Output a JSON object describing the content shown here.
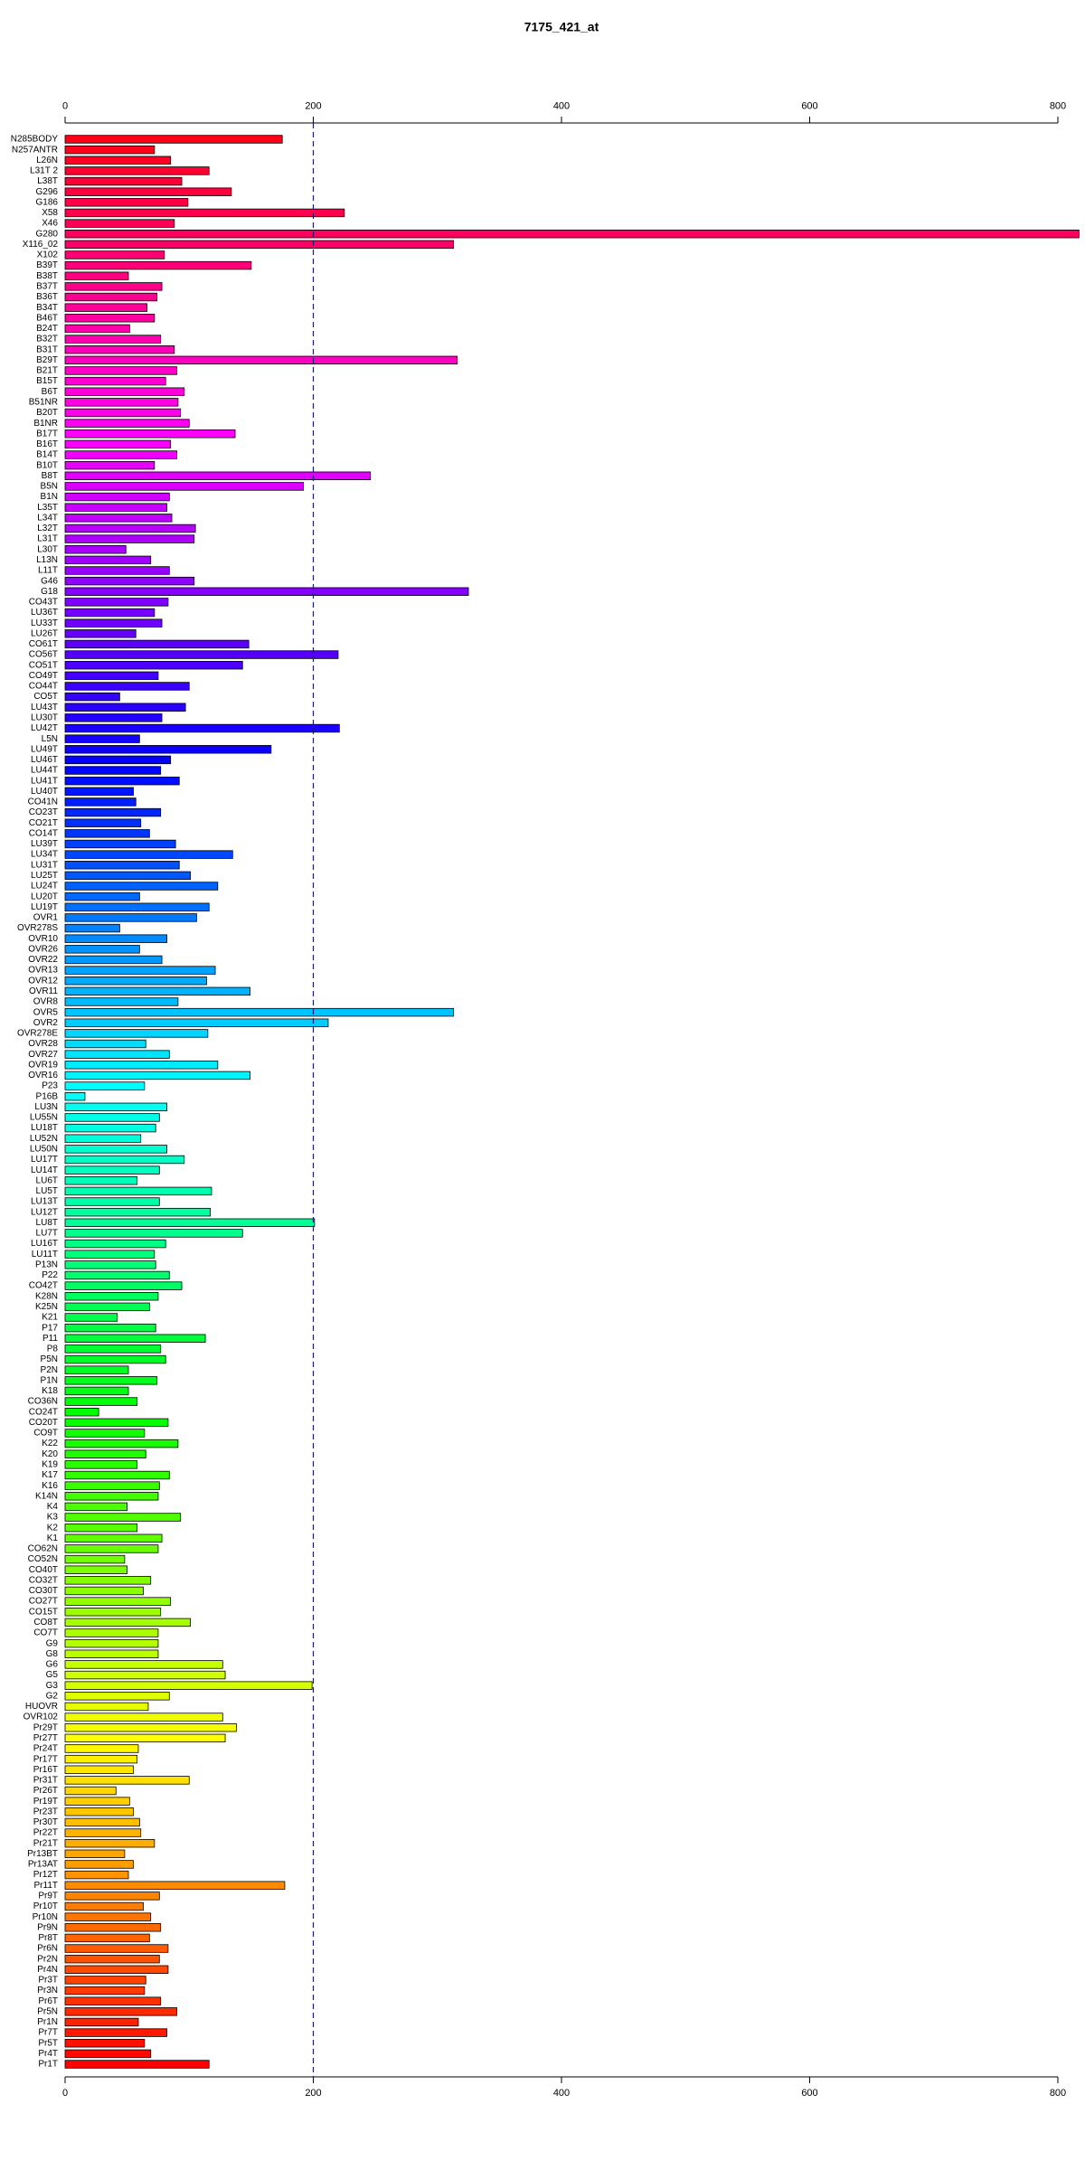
{
  "chart_data": {
    "type": "barh",
    "title": "7175_421_at",
    "categories": [
      "N285BODY",
      "N257ANTR",
      "L26N",
      "L31T 2",
      "L38T",
      "G296",
      "G186",
      "X58",
      "X46",
      "G280",
      "X116_02",
      "X102",
      "B39T",
      "B38T",
      "B37T",
      "B36T",
      "B34T",
      "B46T",
      "B24T",
      "B32T",
      "B31T",
      "B29T",
      "B21T",
      "B15T",
      "B6T",
      "B51NR",
      "B20T",
      "B1NR",
      "B17T",
      "B16T",
      "B14T",
      "B10T",
      "B8T",
      "B5N",
      "B1N",
      "L35T",
      "L34T",
      "L32T",
      "L31T",
      "L30T",
      "L13N",
      "L11T",
      "G46",
      "G18",
      "CO43T",
      "LU36T",
      "LU33T",
      "LU26T",
      "CO61T",
      "CO56T",
      "CO51T",
      "CO49T",
      "CO44T",
      "CO5T",
      "LU43T",
      "LU30T",
      "LU42T",
      "L5N",
      "LU49T",
      "LU46T",
      "LU44T",
      "LU41T",
      "LU40T",
      "CO41N",
      "CO23T",
      "CO21T",
      "CO14T",
      "LU39T",
      "LU34T",
      "LU31T",
      "LU25T",
      "LU24T",
      "LU20T",
      "LU19T",
      "OVR1",
      "OVR278S",
      "OVR10",
      "OVR26",
      "OVR22",
      "OVR13",
      "OVR12",
      "OVR11",
      "OVR8",
      "OVR5",
      "OVR2",
      "OVR278E",
      "OVR28",
      "OVR27",
      "OVR19",
      "OVR16",
      "P23",
      "P16B",
      "LU3N",
      "LU55N",
      "LU18T",
      "LU52N",
      "LU50N",
      "LU17T",
      "LU14T",
      "LU6T",
      "LU5T",
      "LU13T",
      "LU12T",
      "LU8T",
      "LU7T",
      "LU16T",
      "LU11T",
      "P13N",
      "P22",
      "CO42T",
      "K28N",
      "K25N",
      "K21",
      "P17",
      "P11",
      "P8",
      "P5N",
      "P2N",
      "P1N",
      "K18",
      "CO36N",
      "CO24T",
      "CO20T",
      "CO9T",
      "K22",
      "K20",
      "K19",
      "K17",
      "K16",
      "K14N",
      "K4",
      "K3",
      "K2",
      "K1",
      "CO62N",
      "CO52N",
      "CO40T",
      "CO32T",
      "CO30T",
      "CO27T",
      "CO15T",
      "CO8T",
      "CO7T",
      "G9",
      "G8",
      "G6",
      "G5",
      "G3",
      "G2",
      "HUOVR",
      "OVR102",
      "Pr29T",
      "Pr27T",
      "Pr24T",
      "Pr17T",
      "Pr16T",
      "Pr31T",
      "Pr26T",
      "Pr19T",
      "Pr23T",
      "Pr30T",
      "Pr22T",
      "Pr21T",
      "Pr13BT",
      "Pr13AT",
      "Pr12T",
      "Pr11T",
      "Pr9T",
      "Pr10T",
      "Pr10N",
      "Pr9N",
      "Pr8T",
      "Pr6N",
      "Pr2N",
      "Pr4N",
      "Pr3T",
      "Pr3N",
      "Pr6T",
      "Pr5N",
      "Pr1N",
      "Pr7T",
      "Pr5T",
      "Pr4T",
      "Pr1T"
    ],
    "values": [
      175,
      72,
      85,
      116,
      94,
      134,
      99,
      225,
      88,
      817,
      313,
      80,
      150,
      51,
      78,
      74,
      66,
      72,
      52,
      77,
      88,
      316,
      90,
      81,
      96,
      91,
      93,
      100,
      137,
      85,
      90,
      72,
      246,
      192,
      84,
      82,
      86,
      105,
      104,
      49,
      69,
      84,
      104,
      325,
      83,
      72,
      78,
      57,
      148,
      220,
      143,
      75,
      100,
      44,
      97,
      78,
      221,
      60,
      166,
      85,
      77,
      92,
      55,
      57,
      77,
      61,
      68,
      89,
      135,
      92,
      101,
      123,
      60,
      116,
      106,
      44,
      82,
      60,
      78,
      121,
      114,
      149,
      91,
      313,
      212,
      115,
      65,
      84,
      123,
      149,
      64,
      16,
      82,
      76,
      73,
      61,
      82,
      96,
      76,
      58,
      118,
      76,
      117,
      201,
      143,
      81,
      72,
      73,
      84,
      94,
      75,
      68,
      42,
      73,
      113,
      77,
      81,
      51,
      74,
      51,
      58,
      27,
      83,
      64,
      91,
      65,
      58,
      84,
      76,
      75,
      50,
      93,
      58,
      78,
      75,
      48,
      50,
      69,
      63,
      85,
      77,
      101,
      75,
      75,
      75,
      127,
      129,
      199,
      84,
      67,
      127,
      138,
      129,
      59,
      58,
      55,
      100,
      41,
      52,
      55,
      60,
      61,
      72,
      48,
      55,
      51,
      177,
      76,
      63,
      69,
      77,
      68,
      83,
      76,
      83,
      65,
      64,
      77,
      90,
      59,
      82,
      64,
      69,
      116
    ],
    "palette": "rainbow-reversed",
    "xlim": [
      0,
      800
    ],
    "xticks": [
      0,
      200,
      400,
      600,
      800
    ],
    "reference_line": 200
  }
}
